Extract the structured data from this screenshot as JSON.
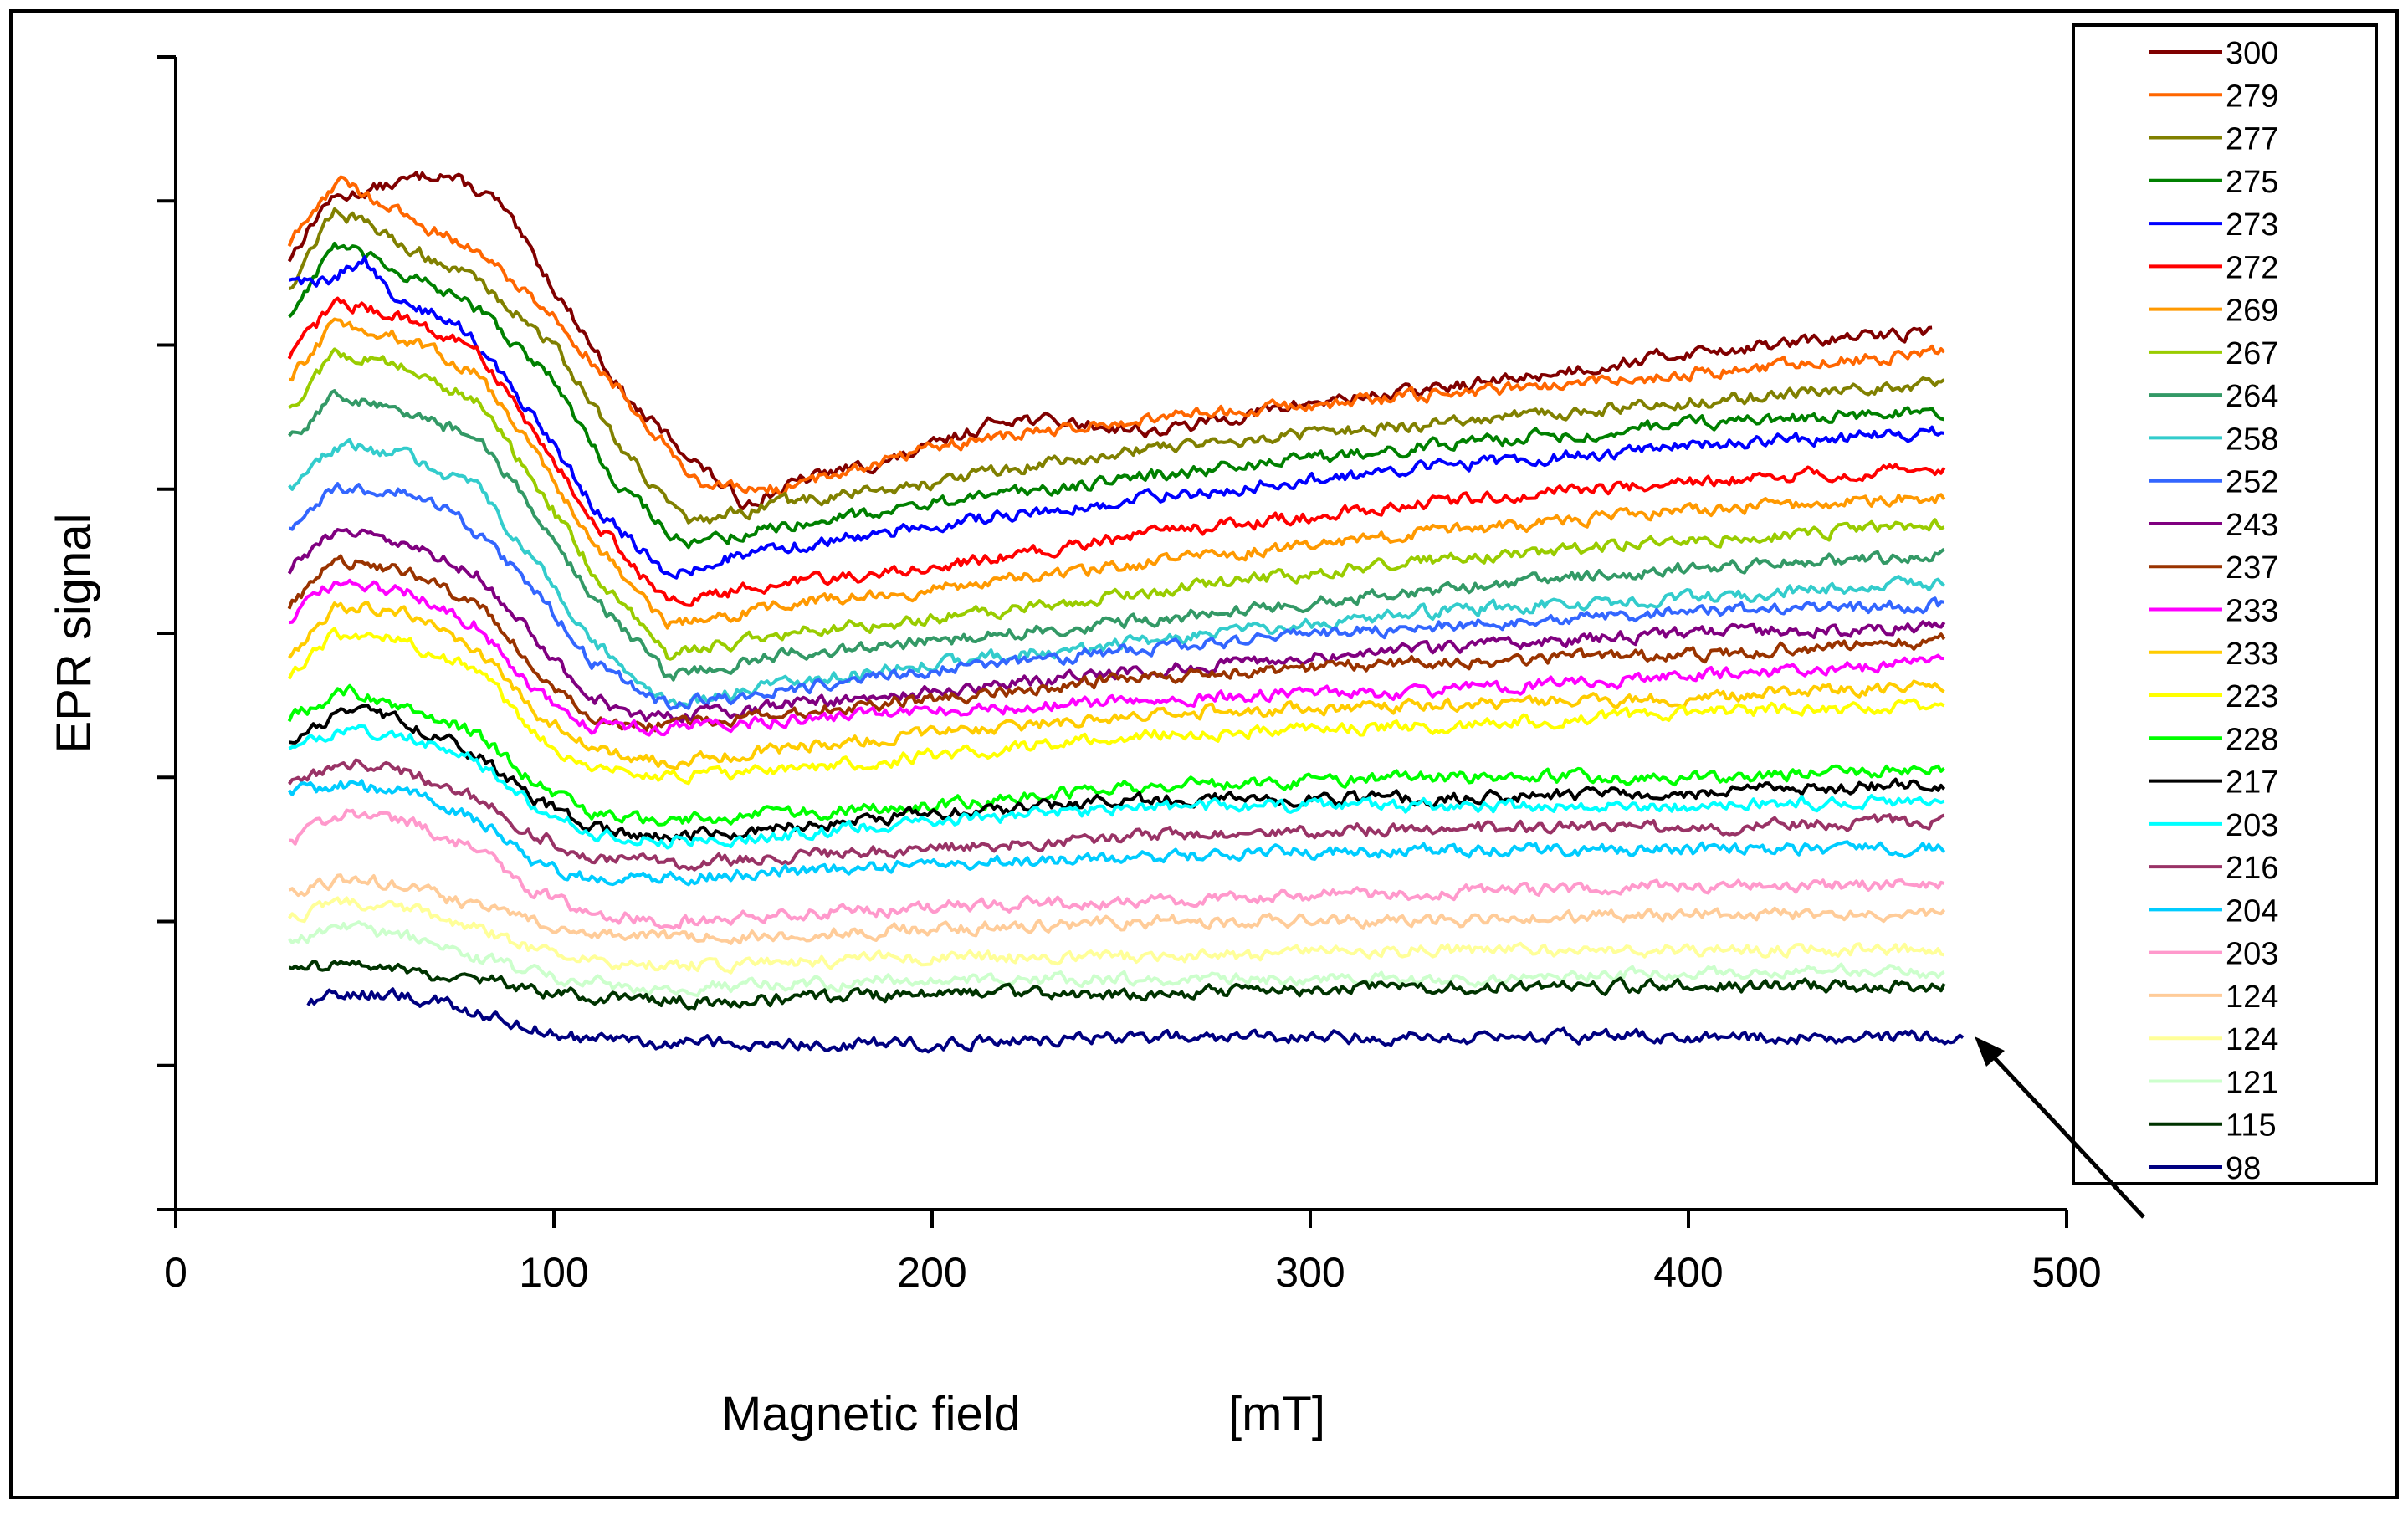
{
  "chart_data": {
    "type": "line",
    "title": "",
    "xlabel": "Magnetic field",
    "xunit": "[mT]",
    "ylabel": "EPR  signal",
    "xlim": [
      0,
      500
    ],
    "xticks": [
      0,
      100,
      200,
      300,
      400,
      500
    ],
    "ylim": [
      0,
      8
    ],
    "y_ticks_unlabeled": true,
    "legend_position": "right",
    "annotation": "arrow pointing at the 98 K trace near 470 mT",
    "series": [
      {
        "name": "300",
        "color": "#800000",
        "x": [
          30,
          40,
          70,
          85,
          100,
          120,
          150,
          170,
          190,
          220,
          260,
          300,
          350,
          400,
          465
        ],
        "y": [
          6.6,
          7.0,
          7.2,
          7.0,
          6.4,
          5.6,
          4.9,
          5.1,
          5.2,
          5.5,
          5.4,
          5.6,
          5.75,
          5.95,
          6.1
        ]
      },
      {
        "name": "279",
        "color": "#FF6600",
        "x": [
          30,
          43,
          60,
          80,
          100,
          120,
          140,
          160,
          200,
          260,
          330,
          400,
          468
        ],
        "y": [
          6.7,
          7.15,
          6.9,
          6.65,
          6.2,
          5.6,
          5.0,
          5.0,
          5.3,
          5.5,
          5.65,
          5.8,
          5.95
        ]
      },
      {
        "name": "277",
        "color": "#808000",
        "x": [
          30,
          42,
          60,
          80,
          100,
          115,
          135,
          160,
          200,
          260,
          330,
          400,
          468
        ],
        "y": [
          6.4,
          6.95,
          6.7,
          6.45,
          6.0,
          5.4,
          4.75,
          4.9,
          5.05,
          5.3,
          5.45,
          5.6,
          5.75
        ]
      },
      {
        "name": "275",
        "color": "#008000",
        "x": [
          30,
          42,
          60,
          80,
          100,
          115,
          135,
          160,
          200,
          260,
          330,
          400,
          468
        ],
        "y": [
          6.2,
          6.7,
          6.5,
          6.25,
          5.75,
          5.1,
          4.6,
          4.75,
          4.9,
          5.1,
          5.3,
          5.45,
          5.55
        ]
      },
      {
        "name": "273",
        "color": "#0000FF",
        "x": [
          30,
          40,
          50,
          58,
          75,
          95,
          110,
          130,
          150,
          200,
          260,
          330,
          400,
          468
        ],
        "y": [
          6.45,
          6.45,
          6.6,
          6.3,
          6.15,
          5.5,
          4.9,
          4.4,
          4.55,
          4.75,
          4.95,
          5.15,
          5.3,
          5.4
        ]
      },
      {
        "name": "272",
        "color": "#FF0000",
        "x": [
          30,
          42,
          60,
          80,
          95,
          110,
          130,
          160,
          200,
          260,
          330,
          400,
          468
        ],
        "y": [
          5.9,
          6.3,
          6.2,
          5.95,
          5.4,
          4.8,
          4.2,
          4.35,
          4.45,
          4.7,
          4.9,
          5.05,
          5.15
        ]
      },
      {
        "name": "269",
        "color": "#FF9900",
        "x": [
          30,
          42,
          60,
          80,
          95,
          110,
          130,
          160,
          200,
          260,
          330,
          400,
          468
        ],
        "y": [
          5.75,
          6.15,
          6.05,
          5.8,
          5.25,
          4.65,
          4.05,
          4.2,
          4.3,
          4.5,
          4.7,
          4.85,
          4.95
        ]
      },
      {
        "name": "267",
        "color": "#99CC00",
        "x": [
          30,
          42,
          60,
          80,
          95,
          110,
          130,
          160,
          200,
          260,
          330,
          400,
          468
        ],
        "y": [
          5.55,
          5.95,
          5.85,
          5.6,
          5.05,
          4.45,
          3.85,
          4.0,
          4.1,
          4.3,
          4.5,
          4.65,
          4.75
        ]
      },
      {
        "name": "264",
        "color": "#339966",
        "x": [
          30,
          42,
          60,
          80,
          95,
          110,
          130,
          160,
          200,
          260,
          330,
          400,
          468
        ],
        "y": [
          5.35,
          5.65,
          5.55,
          5.35,
          4.85,
          4.25,
          3.7,
          3.85,
          3.95,
          4.1,
          4.3,
          4.45,
          4.55
        ]
      },
      {
        "name": "258",
        "color": "#33CCCC",
        "x": [
          30,
          42,
          60,
          80,
          95,
          110,
          130,
          160,
          200,
          260,
          330,
          400,
          468
        ],
        "y": [
          5.0,
          5.3,
          5.25,
          5.0,
          4.5,
          3.95,
          3.5,
          3.65,
          3.8,
          3.95,
          4.15,
          4.25,
          4.35
        ]
      },
      {
        "name": "252",
        "color": "#3366FF",
        "x": [
          30,
          42,
          60,
          75,
          95,
          110,
          130,
          160,
          200,
          260,
          330,
          400,
          468
        ],
        "y": [
          4.7,
          5.0,
          5.0,
          4.8,
          4.3,
          3.8,
          3.5,
          3.6,
          3.75,
          3.9,
          4.05,
          4.15,
          4.2
        ]
      },
      {
        "name": "243",
        "color": "#800080",
        "x": [
          30,
          42,
          60,
          80,
          95,
          110,
          125,
          160,
          200,
          260,
          330,
          400,
          468
        ],
        "y": [
          4.45,
          4.7,
          4.65,
          4.4,
          3.95,
          3.55,
          3.4,
          3.5,
          3.6,
          3.75,
          3.9,
          4.0,
          4.05
        ]
      },
      {
        "name": "237",
        "color": "#993300",
        "x": [
          30,
          42,
          60,
          80,
          95,
          110,
          125,
          160,
          200,
          260,
          330,
          400,
          468
        ],
        "y": [
          4.2,
          4.5,
          4.45,
          4.2,
          3.75,
          3.4,
          3.35,
          3.45,
          3.55,
          3.7,
          3.8,
          3.85,
          3.95
        ]
      },
      {
        "name": "233",
        "color": "#FF00FF",
        "x": [
          30,
          42,
          60,
          80,
          95,
          110,
          130,
          160,
          200,
          260,
          330,
          400,
          468
        ],
        "y": [
          4.1,
          4.35,
          4.3,
          4.05,
          3.6,
          3.35,
          3.35,
          3.4,
          3.45,
          3.55,
          3.6,
          3.7,
          3.8
        ]
      },
      {
        "name": "233",
        "color": "#FFCC00",
        "x": [
          30,
          42,
          60,
          80,
          95,
          110,
          130,
          160,
          200,
          260,
          330,
          400,
          468
        ],
        "y": [
          3.85,
          4.2,
          4.15,
          3.9,
          3.45,
          3.2,
          3.1,
          3.2,
          3.3,
          3.45,
          3.5,
          3.55,
          3.65
        ]
      },
      {
        "name": "223",
        "color": "#FFFF00",
        "x": [
          30,
          42,
          60,
          80,
          95,
          110,
          130,
          160,
          200,
          260,
          330,
          400,
          468
        ],
        "y": [
          3.7,
          4.0,
          3.95,
          3.75,
          3.3,
          3.05,
          3.0,
          3.05,
          3.15,
          3.3,
          3.35,
          3.45,
          3.5
        ]
      },
      {
        "name": "228",
        "color": "#00FF00",
        "x": [
          30,
          45,
          60,
          80,
          95,
          110,
          130,
          160,
          200,
          260,
          330,
          400,
          468
        ],
        "y": [
          3.4,
          3.6,
          3.5,
          3.3,
          2.95,
          2.75,
          2.7,
          2.75,
          2.8,
          2.95,
          3.0,
          3.0,
          3.05
        ]
      },
      {
        "name": "217",
        "color": "#000000",
        "x": [
          30,
          45,
          60,
          80,
          95,
          110,
          130,
          160,
          200,
          260,
          330,
          400,
          468
        ],
        "y": [
          3.25,
          3.45,
          3.4,
          3.15,
          2.85,
          2.65,
          2.6,
          2.65,
          2.75,
          2.85,
          2.85,
          2.9,
          2.95
        ]
      },
      {
        "name": "203",
        "color": "#00FFFF",
        "x": [
          30,
          45,
          60,
          80,
          95,
          110,
          130,
          160,
          200,
          260,
          330,
          400,
          468
        ],
        "y": [
          3.2,
          3.35,
          3.3,
          3.1,
          2.8,
          2.6,
          2.55,
          2.6,
          2.7,
          2.8,
          2.8,
          2.8,
          2.85
        ]
      },
      {
        "name": "216",
        "color": "#993366",
        "x": [
          30,
          45,
          60,
          80,
          95,
          110,
          130,
          160,
          200,
          260,
          330,
          400,
          468
        ],
        "y": [
          2.95,
          3.1,
          3.05,
          2.85,
          2.6,
          2.45,
          2.4,
          2.45,
          2.5,
          2.6,
          2.65,
          2.65,
          2.7
        ]
      },
      {
        "name": "204",
        "color": "#00CCFF",
        "x": [
          30,
          45,
          60,
          80,
          95,
          110,
          130,
          160,
          200,
          260,
          330,
          400,
          468
        ],
        "y": [
          2.9,
          2.95,
          2.9,
          2.7,
          2.4,
          2.3,
          2.3,
          2.35,
          2.4,
          2.45,
          2.5,
          2.5,
          2.5
        ]
      },
      {
        "name": "203",
        "color": "#FF99CC",
        "x": [
          30,
          45,
          60,
          80,
          95,
          110,
          130,
          160,
          200,
          260,
          330,
          400,
          468
        ],
        "y": [
          2.55,
          2.75,
          2.7,
          2.5,
          2.2,
          2.05,
          2.0,
          2.05,
          2.1,
          2.15,
          2.2,
          2.25,
          2.25
        ]
      },
      {
        "name": "124",
        "color": "#FFCC99",
        "x": [
          30,
          45,
          60,
          80,
          100,
          120,
          150,
          200,
          260,
          330,
          400,
          468
        ],
        "y": [
          2.2,
          2.3,
          2.25,
          2.1,
          1.95,
          1.9,
          1.9,
          1.95,
          2.0,
          2.0,
          2.05,
          2.05
        ]
      },
      {
        "name": "124",
        "color": "#FFFF99",
        "x": [
          30,
          45,
          60,
          80,
          100,
          120,
          150,
          200,
          260,
          330,
          400,
          468
        ],
        "y": [
          2.0,
          2.15,
          2.1,
          1.95,
          1.75,
          1.7,
          1.7,
          1.75,
          1.75,
          1.8,
          1.8,
          1.8
        ]
      },
      {
        "name": "121",
        "color": "#CCFFCC",
        "x": [
          30,
          45,
          60,
          80,
          100,
          120,
          150,
          200,
          260,
          330,
          400,
          468
        ],
        "y": [
          1.85,
          1.95,
          1.9,
          1.75,
          1.6,
          1.55,
          1.55,
          1.6,
          1.6,
          1.6,
          1.65,
          1.65
        ]
      },
      {
        "name": "115",
        "color": "#003300",
        "x": [
          30,
          45,
          60,
          80,
          100,
          120,
          150,
          200,
          260,
          330,
          400,
          468
        ],
        "y": [
          1.65,
          1.7,
          1.65,
          1.6,
          1.5,
          1.45,
          1.45,
          1.5,
          1.5,
          1.55,
          1.55,
          1.55
        ]
      },
      {
        "name": "98",
        "color": "#000080",
        "x": [
          35,
          45,
          60,
          75,
          90,
          105,
          125,
          150,
          200,
          260,
          330,
          400,
          473
        ],
        "y": [
          1.45,
          1.5,
          1.5,
          1.4,
          1.3,
          1.2,
          1.15,
          1.15,
          1.15,
          1.2,
          1.2,
          1.2,
          1.2
        ]
      }
    ]
  }
}
